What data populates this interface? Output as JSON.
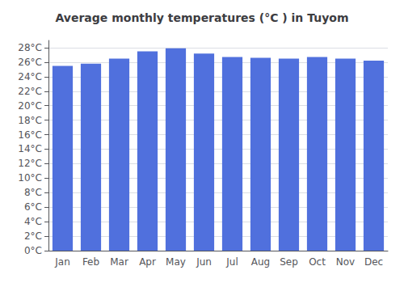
{
  "chart_data": {
    "type": "bar",
    "title": "Average monthly temperatures (°C ) in Tuyom",
    "categories": [
      "Jan",
      "Feb",
      "Mar",
      "Apr",
      "May",
      "Jun",
      "Jul",
      "Aug",
      "Sep",
      "Oct",
      "Nov",
      "Dec"
    ],
    "values": [
      25.5,
      25.8,
      26.5,
      27.5,
      27.9,
      27.2,
      26.7,
      26.6,
      26.5,
      26.7,
      26.5,
      26.2
    ],
    "ylim": [
      0,
      29
    ],
    "yticks": [
      {
        "value": 0,
        "label": "0°C"
      },
      {
        "value": 2,
        "label": "2°C"
      },
      {
        "value": 4,
        "label": "4°C"
      },
      {
        "value": 6,
        "label": "6°C"
      },
      {
        "value": 8,
        "label": "8°C"
      },
      {
        "value": 10,
        "label": "10°C"
      },
      {
        "value": 12,
        "label": "12°C"
      },
      {
        "value": 14,
        "label": "14°C"
      },
      {
        "value": 16,
        "label": "16°C"
      },
      {
        "value": 18,
        "label": "18°C"
      },
      {
        "value": 20,
        "label": "20°C"
      },
      {
        "value": 22,
        "label": "22°C"
      },
      {
        "value": 24,
        "label": "24°C"
      },
      {
        "value": 26,
        "label": "26°C"
      },
      {
        "value": 28,
        "label": "28°C"
      }
    ],
    "grid": true
  }
}
